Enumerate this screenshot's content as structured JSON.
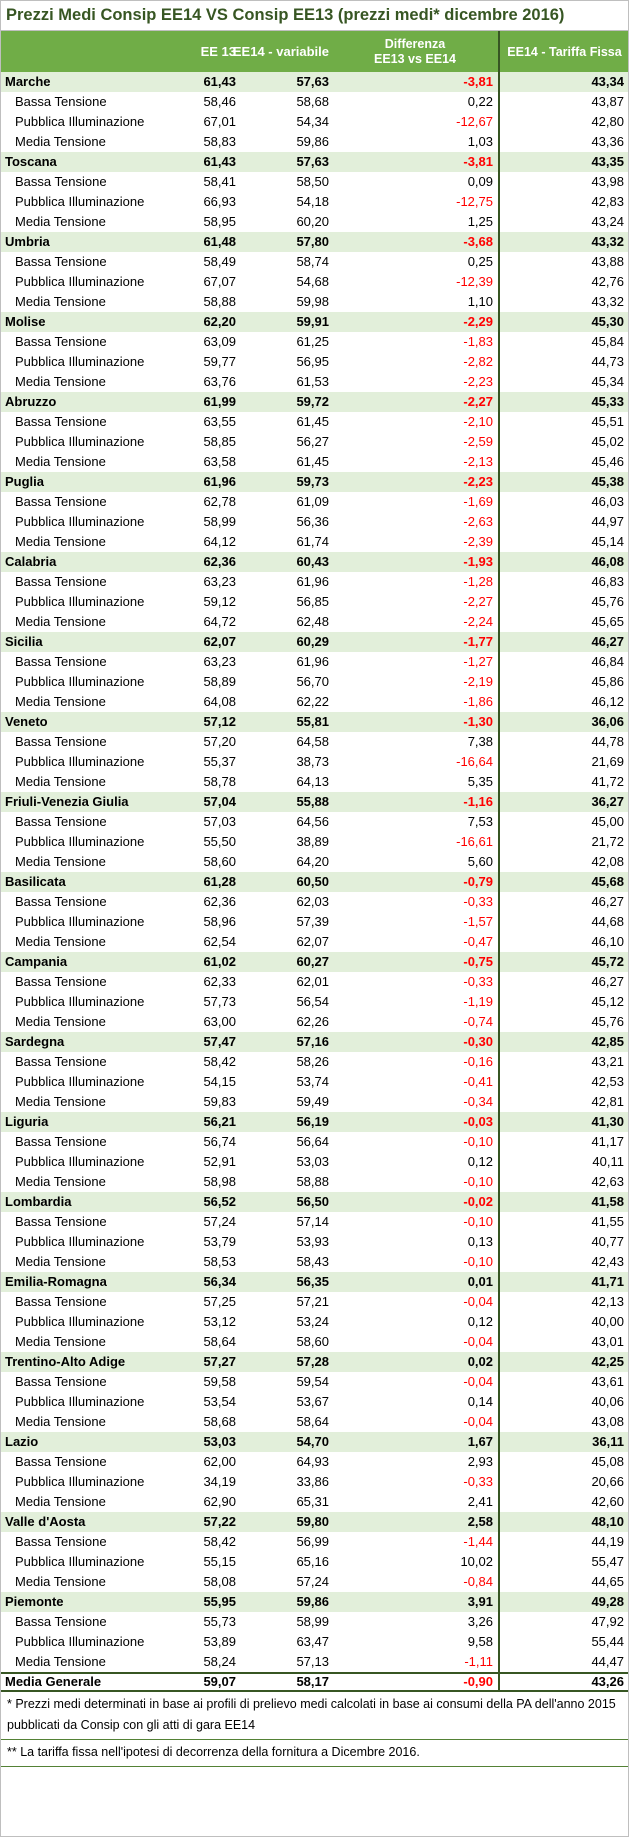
{
  "title": "Prezzi Medi Consip EE14 VS Consip EE13 (prezzi medi* dicembre 2016)",
  "header": {
    "label": "",
    "ee13": "EE 13",
    "ee14_variabile": "EE14 - variabile",
    "differenza_line1": "Differenza",
    "differenza_line2": "EE13 vs EE14",
    "tariffa_fissa": "EE14 - Tariffa Fissa"
  },
  "colors": {
    "header_bg": "#70AD47",
    "region_row_bg": "#E2EFDA",
    "title_text": "#375623",
    "negative_text": "#FF0000",
    "divider": "#375623",
    "footnote_border": "#538135"
  },
  "chart_data": {
    "type": "table",
    "title": "Prezzi Medi Consip EE14 VS Consip EE13 (prezzi medi* dicembre 2016)",
    "columns": [
      "Categoria",
      "EE 13",
      "EE14 - variabile",
      "Differenza EE13 vs EE14",
      "EE14 - Tariffa Fissa"
    ],
    "regions": [
      {
        "name": "Marche",
        "values": [
          "61,43",
          "57,63",
          "-3,81",
          "43,34"
        ],
        "sub_rows": [
          {
            "name": "Bassa Tensione",
            "values": [
              "58,46",
              "58,68",
              "0,22",
              "43,87"
            ]
          },
          {
            "name": "Pubblica Illuminazione",
            "values": [
              "67,01",
              "54,34",
              "-12,67",
              "42,80"
            ]
          },
          {
            "name": "Media Tensione",
            "values": [
              "58,83",
              "59,86",
              "1,03",
              "43,36"
            ]
          }
        ]
      },
      {
        "name": "Toscana",
        "values": [
          "61,43",
          "57,63",
          "-3,81",
          "43,35"
        ],
        "sub_rows": [
          {
            "name": "Bassa Tensione",
            "values": [
              "58,41",
              "58,50",
              "0,09",
              "43,98"
            ]
          },
          {
            "name": "Pubblica Illuminazione",
            "values": [
              "66,93",
              "54,18",
              "-12,75",
              "42,83"
            ]
          },
          {
            "name": "Media Tensione",
            "values": [
              "58,95",
              "60,20",
              "1,25",
              "43,24"
            ]
          }
        ]
      },
      {
        "name": "Umbria",
        "values": [
          "61,48",
          "57,80",
          "-3,68",
          "43,32"
        ],
        "sub_rows": [
          {
            "name": "Bassa Tensione",
            "values": [
              "58,49",
              "58,74",
              "0,25",
              "43,88"
            ]
          },
          {
            "name": "Pubblica Illuminazione",
            "values": [
              "67,07",
              "54,68",
              "-12,39",
              "42,76"
            ]
          },
          {
            "name": "Media Tensione",
            "values": [
              "58,88",
              "59,98",
              "1,10",
              "43,32"
            ]
          }
        ]
      },
      {
        "name": "Molise",
        "values": [
          "62,20",
          "59,91",
          "-2,29",
          "45,30"
        ],
        "sub_rows": [
          {
            "name": "Bassa Tensione",
            "values": [
              "63,09",
              "61,25",
              "-1,83",
              "45,84"
            ]
          },
          {
            "name": "Pubblica Illuminazione",
            "values": [
              "59,77",
              "56,95",
              "-2,82",
              "44,73"
            ]
          },
          {
            "name": "Media Tensione",
            "values": [
              "63,76",
              "61,53",
              "-2,23",
              "45,34"
            ]
          }
        ]
      },
      {
        "name": "Abruzzo",
        "values": [
          "61,99",
          "59,72",
          "-2,27",
          "45,33"
        ],
        "sub_rows": [
          {
            "name": "Bassa Tensione",
            "values": [
              "63,55",
              "61,45",
              "-2,10",
              "45,51"
            ]
          },
          {
            "name": "Pubblica Illuminazione",
            "values": [
              "58,85",
              "56,27",
              "-2,59",
              "45,02"
            ]
          },
          {
            "name": "Media Tensione",
            "values": [
              "63,58",
              "61,45",
              "-2,13",
              "45,46"
            ]
          }
        ]
      },
      {
        "name": "Puglia",
        "values": [
          "61,96",
          "59,73",
          "-2,23",
          "45,38"
        ],
        "sub_rows": [
          {
            "name": "Bassa Tensione",
            "values": [
              "62,78",
              "61,09",
              "-1,69",
              "46,03"
            ]
          },
          {
            "name": "Pubblica Illuminazione",
            "values": [
              "58,99",
              "56,36",
              "-2,63",
              "44,97"
            ]
          },
          {
            "name": "Media Tensione",
            "values": [
              "64,12",
              "61,74",
              "-2,39",
              "45,14"
            ]
          }
        ]
      },
      {
        "name": "Calabria",
        "values": [
          "62,36",
          "60,43",
          "-1,93",
          "46,08"
        ],
        "sub_rows": [
          {
            "name": "Bassa Tensione",
            "values": [
              "63,23",
              "61,96",
              "-1,28",
              "46,83"
            ]
          },
          {
            "name": "Pubblica Illuminazione",
            "values": [
              "59,12",
              "56,85",
              "-2,27",
              "45,76"
            ]
          },
          {
            "name": "Media Tensione",
            "values": [
              "64,72",
              "62,48",
              "-2,24",
              "45,65"
            ]
          }
        ]
      },
      {
        "name": "Sicilia",
        "values": [
          "62,07",
          "60,29",
          "-1,77",
          "46,27"
        ],
        "sub_rows": [
          {
            "name": "Bassa Tensione",
            "values": [
              "63,23",
              "61,96",
              "-1,27",
              "46,84"
            ]
          },
          {
            "name": "Pubblica Illuminazione",
            "values": [
              "58,89",
              "56,70",
              "-2,19",
              "45,86"
            ]
          },
          {
            "name": "Media Tensione",
            "values": [
              "64,08",
              "62,22",
              "-1,86",
              "46,12"
            ]
          }
        ]
      },
      {
        "name": "Veneto",
        "values": [
          "57,12",
          "55,81",
          "-1,30",
          "36,06"
        ],
        "sub_rows": [
          {
            "name": "Bassa Tensione",
            "values": [
              "57,20",
              "64,58",
              "7,38",
              "44,78"
            ]
          },
          {
            "name": "Pubblica Illuminazione",
            "values": [
              "55,37",
              "38,73",
              "-16,64",
              "21,69"
            ]
          },
          {
            "name": "Media Tensione",
            "values": [
              "58,78",
              "64,13",
              "5,35",
              "41,72"
            ]
          }
        ]
      },
      {
        "name": "Friuli-Venezia Giulia",
        "values": [
          "57,04",
          "55,88",
          "-1,16",
          "36,27"
        ],
        "sub_rows": [
          {
            "name": "Bassa Tensione",
            "values": [
              "57,03",
              "64,56",
              "7,53",
              "45,00"
            ]
          },
          {
            "name": "Pubblica Illuminazione",
            "values": [
              "55,50",
              "38,89",
              "-16,61",
              "21,72"
            ]
          },
          {
            "name": "Media Tensione",
            "values": [
              "58,60",
              "64,20",
              "5,60",
              "42,08"
            ]
          }
        ]
      },
      {
        "name": "Basilicata",
        "values": [
          "61,28",
          "60,50",
          "-0,79",
          "45,68"
        ],
        "sub_rows": [
          {
            "name": "Bassa Tensione",
            "values": [
              "62,36",
              "62,03",
              "-0,33",
              "46,27"
            ]
          },
          {
            "name": "Pubblica Illuminazione",
            "values": [
              "58,96",
              "57,39",
              "-1,57",
              "44,68"
            ]
          },
          {
            "name": "Media Tensione",
            "values": [
              "62,54",
              "62,07",
              "-0,47",
              "46,10"
            ]
          }
        ]
      },
      {
        "name": "Campania",
        "values": [
          "61,02",
          "60,27",
          "-0,75",
          "45,72"
        ],
        "sub_rows": [
          {
            "name": "Bassa Tensione",
            "values": [
              "62,33",
              "62,01",
              "-0,33",
              "46,27"
            ]
          },
          {
            "name": "Pubblica Illuminazione",
            "values": [
              "57,73",
              "56,54",
              "-1,19",
              "45,12"
            ]
          },
          {
            "name": "Media Tensione",
            "values": [
              "63,00",
              "62,26",
              "-0,74",
              "45,76"
            ]
          }
        ]
      },
      {
        "name": "Sardegna",
        "values": [
          "57,47",
          "57,16",
          "-0,30",
          "42,85"
        ],
        "sub_rows": [
          {
            "name": "Bassa Tensione",
            "values": [
              "58,42",
              "58,26",
              "-0,16",
              "43,21"
            ]
          },
          {
            "name": "Pubblica Illuminazione",
            "values": [
              "54,15",
              "53,74",
              "-0,41",
              "42,53"
            ]
          },
          {
            "name": "Media Tensione",
            "values": [
              "59,83",
              "59,49",
              "-0,34",
              "42,81"
            ]
          }
        ]
      },
      {
        "name": "Liguria",
        "values": [
          "56,21",
          "56,19",
          "-0,03",
          "41,30"
        ],
        "sub_rows": [
          {
            "name": "Bassa Tensione",
            "values": [
              "56,74",
              "56,64",
              "-0,10",
              "41,17"
            ]
          },
          {
            "name": "Pubblica Illuminazione",
            "values": [
              "52,91",
              "53,03",
              "0,12",
              "40,11"
            ]
          },
          {
            "name": "Media Tensione",
            "values": [
              "58,98",
              "58,88",
              "-0,10",
              "42,63"
            ]
          }
        ]
      },
      {
        "name": "Lombardia",
        "values": [
          "56,52",
          "56,50",
          "-0,02",
          "41,58"
        ],
        "sub_rows": [
          {
            "name": "Bassa Tensione",
            "values": [
              "57,24",
              "57,14",
              "-0,10",
              "41,55"
            ]
          },
          {
            "name": "Pubblica Illuminazione",
            "values": [
              "53,79",
              "53,93",
              "0,13",
              "40,77"
            ]
          },
          {
            "name": "Media Tensione",
            "values": [
              "58,53",
              "58,43",
              "-0,10",
              "42,43"
            ]
          }
        ]
      },
      {
        "name": "Emilia-Romagna",
        "values": [
          "56,34",
          "56,35",
          "0,01",
          "41,71"
        ],
        "sub_rows": [
          {
            "name": "Bassa Tensione",
            "values": [
              "57,25",
              "57,21",
              "-0,04",
              "42,13"
            ]
          },
          {
            "name": "Pubblica Illuminazione",
            "values": [
              "53,12",
              "53,24",
              "0,12",
              "40,00"
            ]
          },
          {
            "name": "Media Tensione",
            "values": [
              "58,64",
              "58,60",
              "-0,04",
              "43,01"
            ]
          }
        ]
      },
      {
        "name": "Trentino-Alto Adige",
        "values": [
          "57,27",
          "57,28",
          "0,02",
          "42,25"
        ],
        "sub_rows": [
          {
            "name": "Bassa Tensione",
            "values": [
              "59,58",
              "59,54",
              "-0,04",
              "43,61"
            ]
          },
          {
            "name": "Pubblica Illuminazione",
            "values": [
              "53,54",
              "53,67",
              "0,14",
              "40,06"
            ]
          },
          {
            "name": "Media Tensione",
            "values": [
              "58,68",
              "58,64",
              "-0,04",
              "43,08"
            ]
          }
        ]
      },
      {
        "name": "Lazio",
        "values": [
          "53,03",
          "54,70",
          "1,67",
          "36,11"
        ],
        "sub_rows": [
          {
            "name": "Bassa Tensione",
            "values": [
              "62,00",
              "64,93",
              "2,93",
              "45,08"
            ]
          },
          {
            "name": "Pubblica Illuminazione",
            "values": [
              "34,19",
              "33,86",
              "-0,33",
              "20,66"
            ]
          },
          {
            "name": "Media Tensione",
            "values": [
              "62,90",
              "65,31",
              "2,41",
              "42,60"
            ]
          }
        ]
      },
      {
        "name": "Valle d'Aosta",
        "values": [
          "57,22",
          "59,80",
          "2,58",
          "48,10"
        ],
        "sub_rows": [
          {
            "name": "Bassa Tensione",
            "values": [
              "58,42",
              "56,99",
              "-1,44",
              "44,19"
            ]
          },
          {
            "name": "Pubblica Illuminazione",
            "values": [
              "55,15",
              "65,16",
              "10,02",
              "55,47"
            ]
          },
          {
            "name": "Media Tensione",
            "values": [
              "58,08",
              "57,24",
              "-0,84",
              "44,65"
            ]
          }
        ]
      },
      {
        "name": "Piemonte",
        "values": [
          "55,95",
          "59,86",
          "3,91",
          "49,28"
        ],
        "sub_rows": [
          {
            "name": "Bassa Tensione",
            "values": [
              "55,73",
              "58,99",
              "3,26",
              "47,92"
            ]
          },
          {
            "name": "Pubblica Illuminazione",
            "values": [
              "53,89",
              "63,47",
              "9,58",
              "55,44"
            ]
          },
          {
            "name": "Media Tensione",
            "values": [
              "58,24",
              "57,13",
              "-1,11",
              "44,47"
            ]
          }
        ]
      }
    ],
    "total_row": {
      "name": "Media Generale",
      "values": [
        "59,07",
        "58,17",
        "-0,90",
        "43,26"
      ]
    },
    "footnotes": [
      "* Prezzi medi determinati in base ai profili di prelievo medi calcolati in base ai consumi della PA dell'anno 2015 pubblicati da Consip con gli atti di gara EE14",
      "** La tariffa fissa nell'ipotesi di decorrenza della fornitura a Dicembre 2016."
    ]
  }
}
